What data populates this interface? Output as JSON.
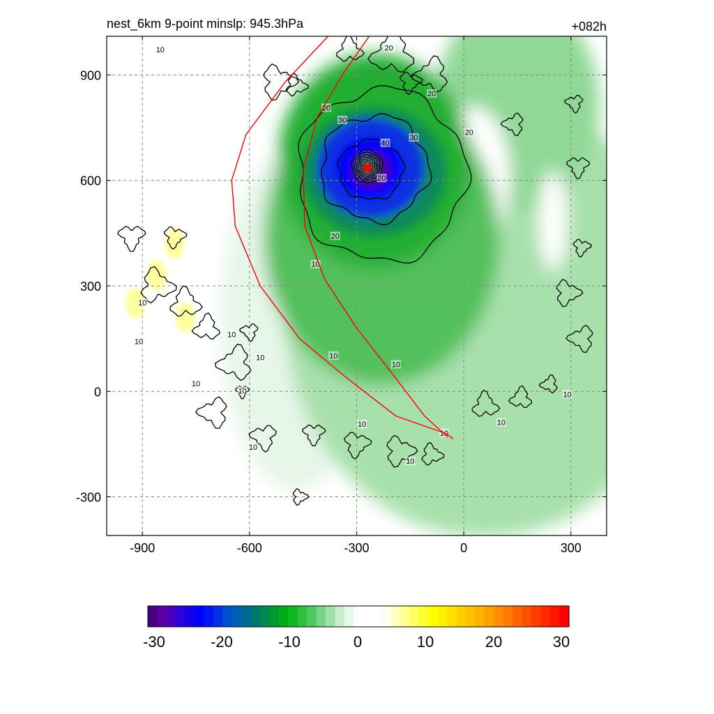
{
  "chart_data": {
    "type": "heatmap",
    "title_left": "nest_6km  9-point minslp: 945.3hPa",
    "title_right": "+082h",
    "xlabel": "",
    "ylabel": "",
    "xlim": [
      -1000,
      400
    ],
    "ylim": [
      -410,
      1010
    ],
    "x_ticks": [
      -900,
      -600,
      -300,
      0,
      300
    ],
    "y_ticks": [
      900,
      600,
      300,
      0,
      -300
    ],
    "grid": true,
    "storm_center": {
      "x": -270,
      "y": 635
    },
    "min_slp_hPa": 945.3,
    "contour_levels": [
      10,
      20,
      30,
      40
    ],
    "contour_labels": [
      {
        "text": "10",
        "x": -850,
        "y": 970
      },
      {
        "text": "10",
        "x": -900,
        "y": 250
      },
      {
        "text": "10",
        "x": -910,
        "y": 140
      },
      {
        "text": "10",
        "x": -650,
        "y": 160
      },
      {
        "text": "10",
        "x": -570,
        "y": 95
      },
      {
        "text": "10",
        "x": -750,
        "y": 20
      },
      {
        "text": "10",
        "x": -620,
        "y": 0
      },
      {
        "text": "10",
        "x": -590,
        "y": -160
      },
      {
        "text": "10",
        "x": -415,
        "y": 360
      },
      {
        "text": "10",
        "x": -365,
        "y": 100
      },
      {
        "text": "10",
        "x": -190,
        "y": 75
      },
      {
        "text": "10",
        "x": -285,
        "y": -95
      },
      {
        "text": "10",
        "x": -150,
        "y": -200
      },
      {
        "text": "10",
        "x": -55,
        "y": -120
      },
      {
        "text": "10",
        "x": 105,
        "y": -90
      },
      {
        "text": "10",
        "x": 290,
        "y": -10
      },
      {
        "text": "20",
        "x": -385,
        "y": 805
      },
      {
        "text": "20",
        "x": -210,
        "y": 975
      },
      {
        "text": "20",
        "x": -90,
        "y": 845
      },
      {
        "text": "20",
        "x": 15,
        "y": 735
      },
      {
        "text": "20",
        "x": -360,
        "y": 440
      },
      {
        "text": "20",
        "x": -230,
        "y": 605
      },
      {
        "text": "30",
        "x": -340,
        "y": 770
      },
      {
        "text": "30",
        "x": -140,
        "y": 720
      },
      {
        "text": "40",
        "x": -220,
        "y": 705
      }
    ],
    "red_arcs": [
      {
        "points": [
          [
            -380,
            1010
          ],
          [
            -500,
            880
          ],
          [
            -610,
            730
          ],
          [
            -650,
            600
          ],
          [
            -640,
            470
          ],
          [
            -570,
            300
          ],
          [
            -460,
            150
          ],
          [
            -330,
            40
          ],
          [
            -190,
            -70
          ],
          [
            -50,
            -120
          ],
          [
            -30,
            -135
          ]
        ]
      },
      {
        "points": [
          [
            -265,
            1010
          ],
          [
            -340,
            900
          ],
          [
            -410,
            780
          ],
          [
            -450,
            630
          ],
          [
            -445,
            470
          ],
          [
            -390,
            320
          ],
          [
            -300,
            180
          ],
          [
            -200,
            50
          ],
          [
            -110,
            -70
          ],
          [
            -45,
            -130
          ]
        ]
      }
    ],
    "colorbar": {
      "min": -30,
      "max": 30,
      "tick_labels": [
        "-30",
        "-20",
        "-10",
        "0",
        "10",
        "20",
        "30"
      ],
      "colors": [
        "#4b0082",
        "#5a00a0",
        "#4800c0",
        "#3000d8",
        "#1500e8",
        "#0000ff",
        "#0018f0",
        "#0030e0",
        "#0050d0",
        "#0060b0",
        "#006a90",
        "#007870",
        "#008850",
        "#009a30",
        "#00ac18",
        "#10b820",
        "#30c040",
        "#50c860",
        "#78d488",
        "#a0e0a8",
        "#c8eecc",
        "#e6f8e8",
        "#ffffff",
        "#ffffff",
        "#ffffff",
        "#fffff0",
        "#ffffc0",
        "#ffff90",
        "#ffff60",
        "#ffff30",
        "#ffff00",
        "#fff000",
        "#ffe000",
        "#ffd000",
        "#ffc000",
        "#ffb000",
        "#ffa000",
        "#ff8c00",
        "#ff7800",
        "#ff6400",
        "#ff5000",
        "#ff3c00",
        "#ff2800",
        "#ff1400",
        "#ff0000"
      ]
    },
    "colors": {
      "contour": "#000000",
      "track": "#ff0000",
      "center": "#ff0000",
      "grid": "#888888"
    }
  }
}
